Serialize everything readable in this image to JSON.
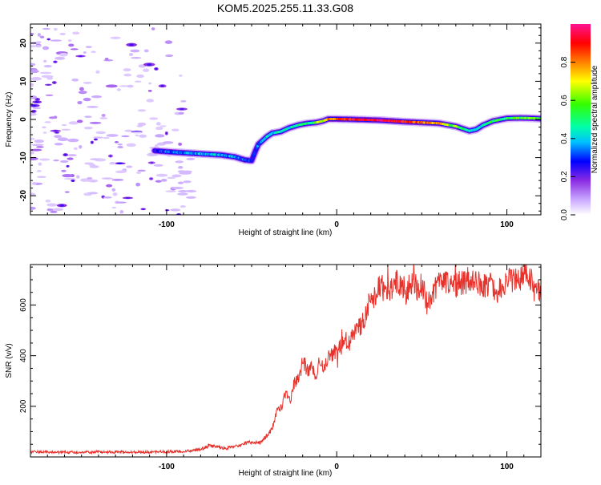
{
  "title": "KOM5.2025.255.11.33.G08",
  "colorbar": {
    "label": "Normalized spectral amplitude",
    "ticks": [
      "0.0",
      "0.2",
      "0.4",
      "0.6",
      "0.8"
    ],
    "tick_values": [
      0.0,
      0.2,
      0.4,
      0.6,
      0.8
    ],
    "range": [
      0.0,
      1.0
    ],
    "colors": [
      "#ffffff",
      "#c9a8ff",
      "#8a2be2",
      "#0000ff",
      "#00bfff",
      "#00ffaa",
      "#33ff00",
      "#ffff00",
      "#ff8000",
      "#ff0000",
      "#ff1493"
    ]
  },
  "chart_data": [
    {
      "type": "heatmap",
      "name": "spectrogram",
      "xlabel": "Height of straight line (km)",
      "ylabel": "Frequency (Hz)",
      "xlim": [
        -180,
        120
      ],
      "ylim": [
        -25,
        25
      ],
      "xticks": [
        -100,
        0,
        100
      ],
      "xtick_labels": [
        "-100",
        "0",
        "100"
      ],
      "yticks": [
        -20,
        -10,
        0,
        10,
        20
      ],
      "ytick_labels": [
        "-20",
        "-10",
        "0",
        "10",
        "20"
      ],
      "ridge": {
        "x": [
          -107,
          -95,
          -80,
          -68,
          -60,
          -54,
          -50,
          -48,
          -46,
          -44,
          -41,
          -38,
          -33,
          -28,
          -22,
          -17,
          -12,
          -8,
          -5,
          0,
          10,
          25,
          40,
          60,
          70,
          78,
          82,
          86,
          92,
          100,
          108,
          116,
          120
        ],
        "y": [
          -8.2,
          -8.6,
          -9.0,
          -9.3,
          -9.8,
          -10.6,
          -10.8,
          -8.5,
          -6.5,
          -5.7,
          -4.5,
          -3.6,
          -3.2,
          -2.2,
          -1.4,
          -1.0,
          -0.8,
          -0.4,
          0.1,
          0.1,
          0.0,
          -0.2,
          -0.6,
          -1.0,
          -1.8,
          -3.0,
          -2.6,
          -1.5,
          -0.4,
          0.3,
          0.4,
          0.3,
          0.2
        ],
        "amp": [
          0.3,
          0.35,
          0.4,
          0.42,
          0.38,
          0.3,
          0.35,
          0.3,
          0.35,
          0.4,
          0.45,
          0.45,
          0.45,
          0.48,
          0.5,
          0.52,
          0.6,
          0.7,
          0.78,
          0.85,
          0.9,
          0.95,
          0.9,
          0.75,
          0.6,
          0.45,
          0.4,
          0.5,
          0.55,
          0.55,
          0.6,
          0.65,
          0.55
        ]
      },
      "noise_region_x": [
        -180,
        -90
      ]
    },
    {
      "type": "line",
      "name": "snr",
      "xlabel": "Height of straight line (km)",
      "ylabel": "SNR (v/v)",
      "xlim": [
        -180,
        120
      ],
      "ylim": [
        0,
        760
      ],
      "xticks": [
        -100,
        0,
        100
      ],
      "xtick_labels": [
        "-100",
        "0",
        "100"
      ],
      "yticks": [
        200,
        400,
        600
      ],
      "ytick_labels": [
        "200",
        "400",
        "600"
      ],
      "series": [
        {
          "name": "SNR",
          "color": "#e8312a",
          "x": [
            -180,
            -160,
            -140,
            -120,
            -100,
            -90,
            -80,
            -75,
            -70,
            -65,
            -60,
            -55,
            -50,
            -45,
            -40,
            -38,
            -35,
            -32,
            -30,
            -27,
            -25,
            -22,
            -20,
            -17,
            -15,
            -12,
            -10,
            -7,
            -5,
            -2,
            0,
            3,
            5,
            8,
            10,
            13,
            15,
            18,
            20,
            23,
            25,
            30,
            35,
            40,
            45,
            48,
            50,
            53,
            55,
            58,
            60,
            65,
            70,
            75,
            80,
            85,
            90,
            95,
            100,
            105,
            110,
            115,
            120
          ],
          "values": [
            20,
            18,
            20,
            19,
            20,
            22,
            30,
            45,
            40,
            35,
            40,
            50,
            60,
            55,
            90,
            110,
            190,
            200,
            260,
            230,
            290,
            310,
            380,
            340,
            360,
            320,
            380,
            350,
            400,
            410,
            420,
            440,
            460,
            450,
            490,
            510,
            530,
            580,
            640,
            620,
            680,
            650,
            690,
            640,
            700,
            650,
            690,
            600,
            620,
            660,
            690,
            700,
            680,
            690,
            710,
            670,
            690,
            650,
            700,
            690,
            720,
            700,
            640
          ]
        }
      ]
    }
  ]
}
